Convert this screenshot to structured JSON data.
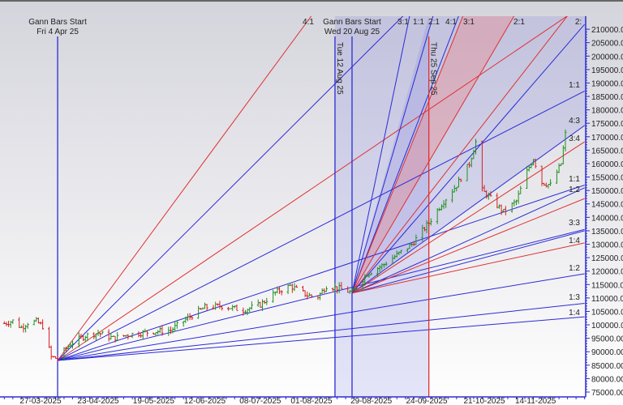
{
  "chart_data": {
    "type": "bar",
    "subtype": "ohlc-with-gann-fans",
    "y_axis": {
      "min": 75000,
      "max": 210000,
      "step": 5000,
      "side": "right",
      "decimals": 2
    },
    "x_tick_labels": [
      {
        "date": "2025-03-02",
        "label": "5"
      },
      {
        "date": "2025-03-27",
        "label": "27-03-2025"
      },
      {
        "date": "2025-04-23",
        "label": "23-04-2025"
      },
      {
        "date": "2025-05-19",
        "label": "19-05-2025"
      },
      {
        "date": "2025-06-12",
        "label": "12-06-2025"
      },
      {
        "date": "2025-07-08",
        "label": "08-07-2025"
      },
      {
        "date": "2025-08-01",
        "label": "01-08-2025"
      },
      {
        "date": "2025-08-29",
        "label": "29-08-2025"
      },
      {
        "date": "2025-09-24",
        "label": "24-09-2025"
      },
      {
        "date": "2025-10-21",
        "label": "21-10-2025"
      },
      {
        "date": "2025-11-14",
        "label": "14-11-2025"
      }
    ],
    "closes": [
      [
        "2025-03-10",
        100500
      ],
      [
        "2025-03-14",
        101500
      ],
      [
        "2025-03-18",
        99000
      ],
      [
        "2025-03-21",
        100800
      ],
      [
        "2025-03-25",
        101200
      ],
      [
        "2025-03-28",
        99500
      ],
      [
        "2025-04-01",
        88000
      ],
      [
        "2025-04-04",
        87500
      ],
      [
        "2025-04-10",
        93000
      ],
      [
        "2025-04-17",
        96000
      ],
      [
        "2025-04-23",
        97000
      ],
      [
        "2025-04-30",
        95000
      ],
      [
        "2025-05-08",
        96500
      ],
      [
        "2025-05-19",
        97500
      ],
      [
        "2025-05-27",
        98000
      ],
      [
        "2025-06-03",
        102000
      ],
      [
        "2025-06-12",
        106500
      ],
      [
        "2025-06-20",
        107000
      ],
      [
        "2025-06-30",
        105500
      ],
      [
        "2025-07-08",
        107500
      ],
      [
        "2025-07-15",
        112000
      ],
      [
        "2025-07-22",
        114500
      ],
      [
        "2025-07-30",
        111000
      ],
      [
        "2025-08-04",
        110500
      ],
      [
        "2025-08-08",
        114500
      ],
      [
        "2025-08-14",
        113500
      ],
      [
        "2025-08-20",
        112000
      ],
      [
        "2025-08-27",
        119000
      ],
      [
        "2025-09-03",
        122000
      ],
      [
        "2025-09-10",
        126000
      ],
      [
        "2025-09-17",
        130000
      ],
      [
        "2025-09-25",
        138000
      ],
      [
        "2025-10-01",
        145000
      ],
      [
        "2025-10-08",
        152000
      ],
      [
        "2025-10-14",
        160000
      ],
      [
        "2025-10-17",
        168000
      ],
      [
        "2025-10-20",
        150000
      ],
      [
        "2025-10-24",
        147000
      ],
      [
        "2025-10-30",
        142000
      ],
      [
        "2025-11-05",
        146000
      ],
      [
        "2025-11-10",
        157000
      ],
      [
        "2025-11-13",
        162000
      ],
      [
        "2025-11-17",
        153000
      ],
      [
        "2025-11-21",
        152000
      ],
      [
        "2025-11-26",
        160000
      ],
      [
        "2025-11-28",
        171000
      ]
    ],
    "colors": {
      "up": "#1f8f1f",
      "down": "#d42020",
      "fan_blue": "#2b2bd6",
      "fan_red": "#e03030",
      "shade_blue": "#5a5ae0",
      "shade_red": "#f08080",
      "background": "#e4e4ea"
    },
    "vertical_markers": [
      {
        "date": "2025-04-04",
        "color": "#2b2bd6",
        "title": "Gann Bars Start",
        "label": "Fri 4 Apr 25",
        "orientation": "horizontal"
      },
      {
        "date": "2025-08-12",
        "color": "#2b2bd6",
        "label": "Tue 12 Aug 25",
        "orientation": "vertical"
      },
      {
        "date": "2025-08-20",
        "color": "#2b2bd6",
        "title": "Gann Bars Start",
        "label": "Wed 20 Aug 25",
        "orientation": "horizontal"
      },
      {
        "date": "2025-09-25",
        "color": "#e03030",
        "label": "Thu 25 Sep 25",
        "orientation": "vertical"
      }
    ],
    "fans": [
      {
        "origin": {
          "date": "2025-04-04",
          "price": 86750
        },
        "lines": [
          {
            "color": "red",
            "end": {
              "date": "2025-08-01",
              "price": 215000
            }
          },
          {
            "color": "blue",
            "end": {
              "date": "2025-09-13",
              "price": 215000
            }
          },
          {
            "color": "red",
            "end": {
              "date": "2025-11-29",
              "price": 215000
            }
          },
          {
            "color": "blue",
            "end": {
              "date": "2025-12-07",
              "price": 187000
            }
          },
          {
            "color": "blue",
            "end": {
              "date": "2025-12-07",
              "price": 152000
            }
          },
          {
            "color": "blue",
            "end": {
              "date": "2025-12-07",
              "price": 135500
            }
          },
          {
            "color": "blue",
            "end": {
              "date": "2025-12-07",
              "price": 119000
            }
          },
          {
            "color": "blue",
            "end": {
              "date": "2025-12-07",
              "price": 108000
            }
          },
          {
            "color": "blue",
            "end": {
              "date": "2025-12-07",
              "price": 103000
            }
          }
        ]
      },
      {
        "origin": {
          "date": "2025-08-20",
          "price": 111800
        },
        "lines": [
          {
            "color": "blue",
            "end": {
              "date": "2025-09-16",
              "price": 215000
            }
          },
          {
            "color": "blue",
            "end": {
              "date": "2025-09-27",
              "price": 215000
            }
          },
          {
            "color": "blue",
            "end": {
              "date": "2025-10-09",
              "price": 215000
            }
          },
          {
            "color": "red",
            "end": {
              "date": "2025-10-11",
              "price": 215000
            }
          },
          {
            "color": "red",
            "end": {
              "date": "2025-11-04",
              "price": 215000
            }
          },
          {
            "color": "red",
            "end": {
              "date": "2025-11-29",
              "price": 215000
            }
          },
          {
            "color": "blue",
            "end": {
              "date": "2025-12-07",
              "price": 211800
            }
          },
          {
            "color": "blue",
            "end": {
              "date": "2025-12-07",
              "price": 174200
            }
          },
          {
            "color": "red",
            "end": {
              "date": "2025-12-07",
              "price": 168100
            }
          },
          {
            "color": "blue",
            "end": {
              "date": "2025-12-07",
              "price": 151000
            }
          },
          {
            "color": "red",
            "end": {
              "date": "2025-12-07",
              "price": 147000
            }
          },
          {
            "color": "blue",
            "end": {
              "date": "2025-12-07",
              "price": 135000
            }
          },
          {
            "color": "red",
            "end": {
              "date": "2025-12-07",
              "price": 130500
            }
          }
        ]
      }
    ],
    "fan_labels_top": [
      "4:1",
      "3:1",
      "1:1",
      "2:1",
      "4:1",
      "3:1",
      "2:1",
      "2:"
    ],
    "fan_labels_right": [
      "1:1",
      "4:3",
      "3:4",
      "1:1",
      "1:2",
      "3:3",
      "1:4",
      "1:2",
      "1:3",
      "1:4"
    ]
  }
}
